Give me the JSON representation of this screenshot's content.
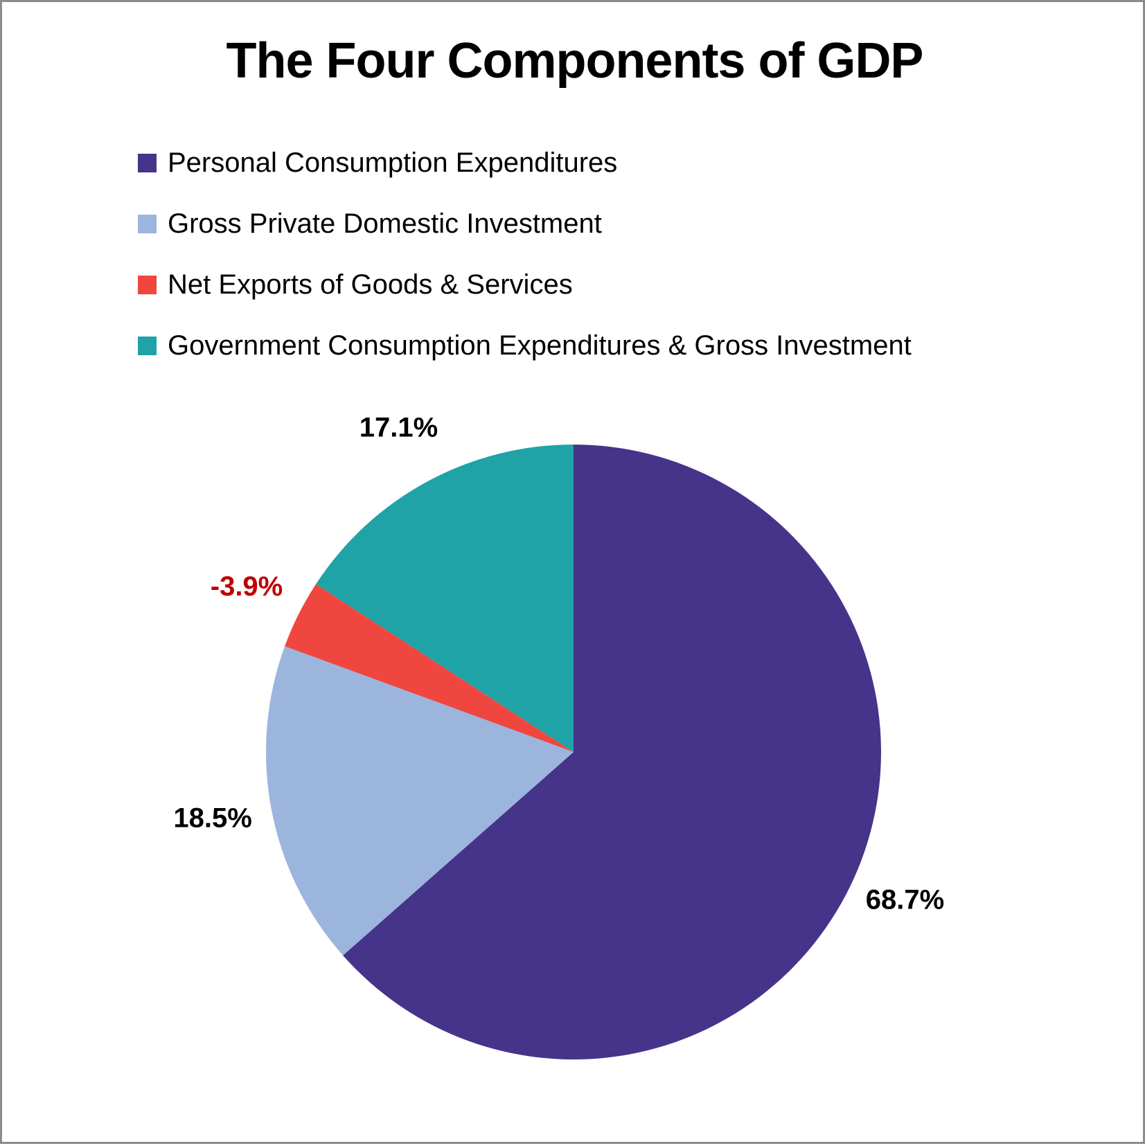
{
  "chart_data": {
    "type": "pie",
    "title": "The Four Components of GDP",
    "legend_position": "top",
    "series": [
      {
        "name": "Personal Consumption Expenditures",
        "value": 68.7,
        "label": "68.7%",
        "color": "#46338a",
        "label_color": "#000000"
      },
      {
        "name": "Gross Private Domestic Investment",
        "value": 18.5,
        "label": "18.5%",
        "color": "#9bb5dd",
        "label_color": "#000000"
      },
      {
        "name": "Net Exports of Goods & Services",
        "value": -3.9,
        "label": "-3.9%",
        "color": "#ef463f",
        "label_color": "#c00000"
      },
      {
        "name": "Government Consumption Expenditures & Gross Investment",
        "value": 17.1,
        "label": "17.1%",
        "color": "#1fa3a7",
        "label_color": "#000000"
      }
    ]
  }
}
